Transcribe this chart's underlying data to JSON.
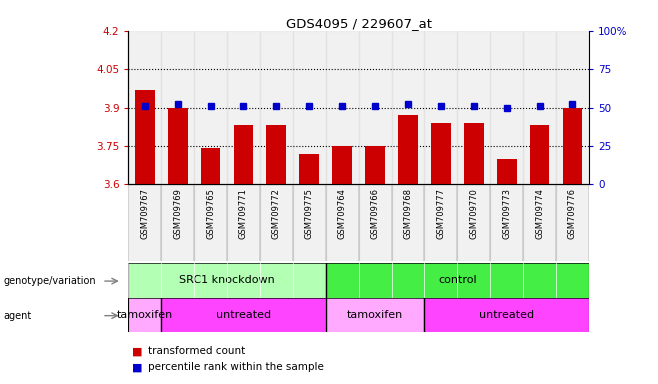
{
  "title": "GDS4095 / 229607_at",
  "samples": [
    "GSM709767",
    "GSM709769",
    "GSM709765",
    "GSM709771",
    "GSM709772",
    "GSM709775",
    "GSM709764",
    "GSM709766",
    "GSM709768",
    "GSM709777",
    "GSM709770",
    "GSM709773",
    "GSM709774",
    "GSM709776"
  ],
  "bar_values": [
    3.97,
    3.9,
    3.74,
    3.83,
    3.83,
    3.72,
    3.75,
    3.75,
    3.87,
    3.84,
    3.84,
    3.7,
    3.83,
    3.9
  ],
  "percentile_values": [
    51,
    52,
    51,
    51,
    51,
    51,
    51,
    51,
    52,
    51,
    51,
    50,
    51,
    52
  ],
  "bar_color": "#cc0000",
  "dot_color": "#0000cc",
  "ylim_left": [
    3.6,
    4.2
  ],
  "ylim_right": [
    0,
    100
  ],
  "yticks_left": [
    3.6,
    3.75,
    3.9,
    4.05,
    4.2
  ],
  "yticks_right": [
    0,
    25,
    50,
    75,
    100
  ],
  "ytick_labels_left": [
    "3.6",
    "3.75",
    "3.9",
    "4.05",
    "4.2"
  ],
  "ytick_labels_right": [
    "0",
    "25",
    "50",
    "75",
    "100%"
  ],
  "hlines": [
    3.75,
    3.9,
    4.05
  ],
  "genotype_labels": [
    "SRC1 knockdown",
    "control"
  ],
  "genotype_color_light": "#b3ffb3",
  "genotype_color_bright": "#44ee44",
  "agent_labels": [
    "tamoxifen",
    "untreated",
    "tamoxifen",
    "untreated"
  ],
  "agent_color_light": "#ffaaff",
  "agent_color_bright": "#ff44ff",
  "legend_bar_label": "transformed count",
  "legend_dot_label": "percentile rank within the sample",
  "left_color": "#cc0000",
  "right_color": "#0000cc",
  "bg_color": "#ffffff",
  "sample_bg": "#d8d8d8"
}
